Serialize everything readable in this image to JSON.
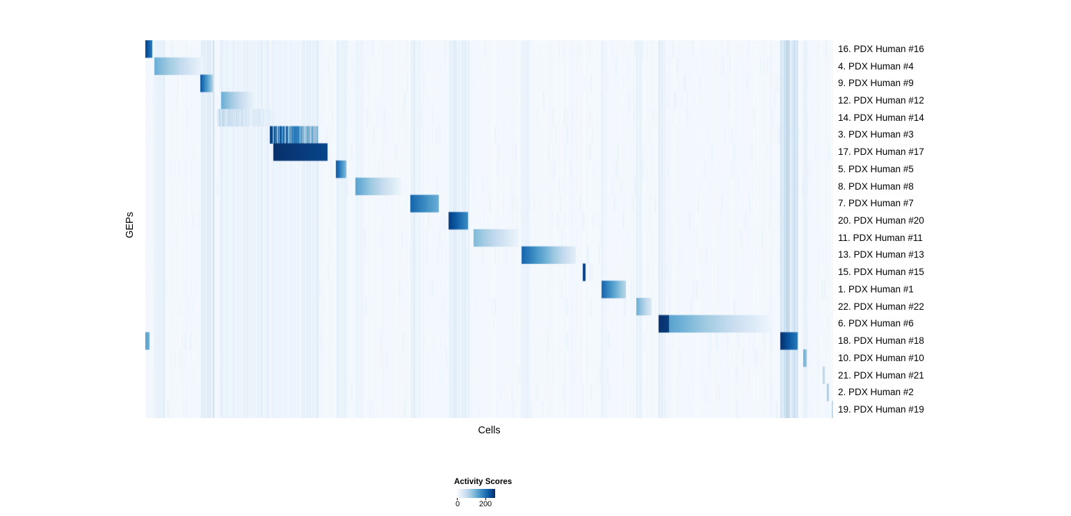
{
  "figure": {
    "x_axis_label": "Cells",
    "y_axis_label": "GEPs"
  },
  "legend": {
    "title": "Activity Scores",
    "tick_min": "0",
    "tick_max": "200",
    "tick_max_fraction": 0.75
  },
  "chart_data": {
    "type": "heatmap",
    "title": "",
    "xlabel": "Cells",
    "ylabel": "GEPs",
    "colormap": "Blues",
    "colormap_stops": [
      "#f7fbff",
      "#deebf7",
      "#c6dbef",
      "#9ecae1",
      "#6baed6",
      "#4292c6",
      "#2171b5",
      "#08519c",
      "#08306b"
    ],
    "legend_title": "Activity Scores",
    "value_range": [
      0,
      200
    ],
    "background_level": 0.015,
    "n_rows": 22,
    "rows": [
      {
        "label": "16. PDX Human #16",
        "segments": [
          {
            "start": 0.0,
            "end": 0.0101,
            "v0": 0.92,
            "v1": 0.72
          }
        ]
      },
      {
        "label": "4. PDX Human #4",
        "segments": [
          {
            "start": 0.0131,
            "end": 0.0839,
            "v0": 0.5,
            "v1": 0.05
          }
        ]
      },
      {
        "label": "9. PDX Human #9",
        "segments": [
          {
            "start": 0.0799,
            "end": 0.0981,
            "v0": 0.85,
            "v1": 0.35
          }
        ]
      },
      {
        "label": "12. PDX Human #12",
        "segments": [
          {
            "start": 0.1102,
            "end": 0.1598,
            "v0": 0.5,
            "v1": 0.05
          }
        ]
      },
      {
        "label": "14. PDX Human #14",
        "segments": [
          {
            "start": 0.1041,
            "end": 0.185,
            "v0": 0.28,
            "v1": 0.1,
            "striped": true
          }
        ]
      },
      {
        "label": "3. PDX Human #3",
        "segments": [
          {
            "start": 0.181,
            "end": 0.2518,
            "v0": 0.95,
            "v1": 0.5,
            "striped": true
          }
        ]
      },
      {
        "label": "17. PDX Human #17",
        "segments": [
          {
            "start": 0.1861,
            "end": 0.2649,
            "v0": 1.0,
            "v1": 0.92
          }
        ]
      },
      {
        "label": "5. PDX Human #5",
        "segments": [
          {
            "start": 0.277,
            "end": 0.2922,
            "v0": 0.85,
            "v1": 0.45
          }
        ]
      },
      {
        "label": "8. PDX Human #8",
        "segments": [
          {
            "start": 0.3054,
            "end": 0.3711,
            "v0": 0.55,
            "v1": 0.05
          }
        ]
      },
      {
        "label": "7. PDX Human #7",
        "segments": [
          {
            "start": 0.3853,
            "end": 0.4267,
            "v0": 0.8,
            "v1": 0.5
          }
        ]
      },
      {
        "label": "20. PDX Human #20",
        "segments": [
          {
            "start": 0.4409,
            "end": 0.4692,
            "v0": 0.95,
            "v1": 0.65
          }
        ]
      },
      {
        "label": "11. PDX Human #11",
        "segments": [
          {
            "start": 0.4773,
            "end": 0.543,
            "v0": 0.45,
            "v1": 0.05
          }
        ]
      },
      {
        "label": "13. PDX Human #13",
        "segments": [
          {
            "start": 0.547,
            "end": 0.6259,
            "v0": 0.8,
            "v1": 0.1
          }
        ]
      },
      {
        "label": "15. PDX Human #15",
        "segments": [
          {
            "start": 0.636,
            "end": 0.6401,
            "v0": 0.95,
            "v1": 0.9
          }
        ]
      },
      {
        "label": "1. PDX Human #1",
        "segments": [
          {
            "start": 0.6633,
            "end": 0.6987,
            "v0": 0.8,
            "v1": 0.3
          }
        ]
      },
      {
        "label": "22. PDX Human #22",
        "segments": [
          {
            "start": 0.7139,
            "end": 0.7361,
            "v0": 0.5,
            "v1": 0.15
          }
        ]
      },
      {
        "label": "6. PDX Human #6",
        "segments": [
          {
            "start": 0.7462,
            "end": 0.7614,
            "v0": 1.0,
            "v1": 0.95
          },
          {
            "start": 0.7614,
            "end": 0.9111,
            "v0": 0.55,
            "v1": 0.04
          }
        ]
      },
      {
        "label": "18. PDX Human #18",
        "segments": [
          {
            "start": 0.0,
            "end": 0.006,
            "v0": 0.55,
            "v1": 0.5
          },
          {
            "start": 0.9232,
            "end": 0.9485,
            "v0": 1.0,
            "v1": 0.72
          }
        ]
      },
      {
        "label": "10. PDX Human #10",
        "segments": [
          {
            "start": 0.9565,
            "end": 0.9616,
            "v0": 0.5,
            "v1": 0.4
          }
        ]
      },
      {
        "label": "21. PDX Human #21",
        "segments": [
          {
            "start": 0.9849,
            "end": 0.9879,
            "v0": 0.3,
            "v1": 0.25
          }
        ]
      },
      {
        "label": "2. PDX Human #2",
        "segments": [
          {
            "start": 0.9909,
            "end": 0.9939,
            "v0": 0.35,
            "v1": 0.3
          }
        ]
      },
      {
        "label": "19. PDX Human #19",
        "segments": [
          {
            "start": 0.998,
            "end": 1.0,
            "v0": 0.3,
            "v1": 0.25
          }
        ]
      }
    ],
    "noise_bands": [
      {
        "x": 0.0131,
        "w": 0.015,
        "i": 0.06
      },
      {
        "x": 0.0799,
        "w": 0.02,
        "i": 0.1
      },
      {
        "x": 0.108,
        "w": 0.077,
        "i": 0.05
      },
      {
        "x": 0.181,
        "w": 0.072,
        "i": 0.04
      },
      {
        "x": 0.232,
        "w": 0.02,
        "i": 0.06
      },
      {
        "x": 0.277,
        "w": 0.016,
        "i": 0.06
      },
      {
        "x": 0.3054,
        "w": 0.012,
        "i": 0.04
      },
      {
        "x": 0.3853,
        "w": 0.015,
        "i": 0.05
      },
      {
        "x": 0.4409,
        "w": 0.03,
        "i": 0.07
      },
      {
        "x": 0.547,
        "w": 0.012,
        "i": 0.04
      },
      {
        "x": 0.6633,
        "w": 0.008,
        "i": 0.04
      },
      {
        "x": 0.7139,
        "w": 0.008,
        "i": 0.05
      },
      {
        "x": 0.7462,
        "w": 0.01,
        "i": 0.05
      },
      {
        "x": 0.9232,
        "w": 0.026,
        "i": 0.14
      },
      {
        "x": 0.9565,
        "w": 0.006,
        "i": 0.06
      }
    ]
  }
}
